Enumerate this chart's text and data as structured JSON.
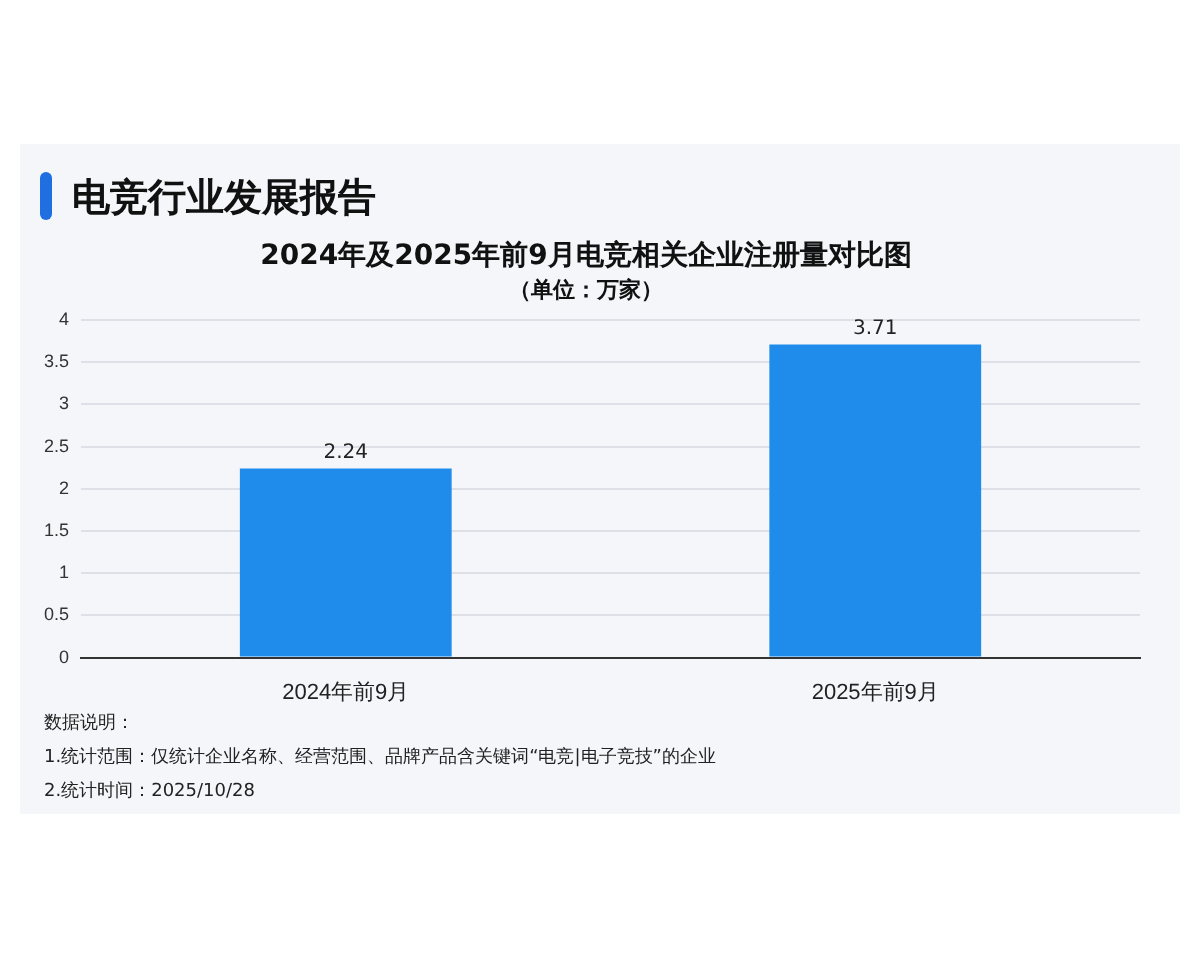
{
  "chart_data": {
    "type": "bar",
    "title": "2024年及2025年前9月电竞相关企业注册量对比图",
    "subtitle": "（单位：万家）",
    "categories": [
      "2024年前9月",
      "2025年前9月"
    ],
    "values": [
      2.24,
      3.71
    ],
    "color": "#1f8ceb",
    "ylim": [
      0,
      4
    ],
    "yticks": [
      0,
      0.5,
      1,
      1.5,
      2,
      2.5,
      3,
      3.5,
      4
    ],
    "grid": "y",
    "data_labels": true,
    "legend": false,
    "annotations": [
      "电竞行业发展报告",
      "数据说明：",
      "1.统计范围：仅统计企业名称、经营范围、品牌产品含关键词“电竞|电子竞技”的企业",
      "2.统计时间：2025/10/28"
    ]
  }
}
